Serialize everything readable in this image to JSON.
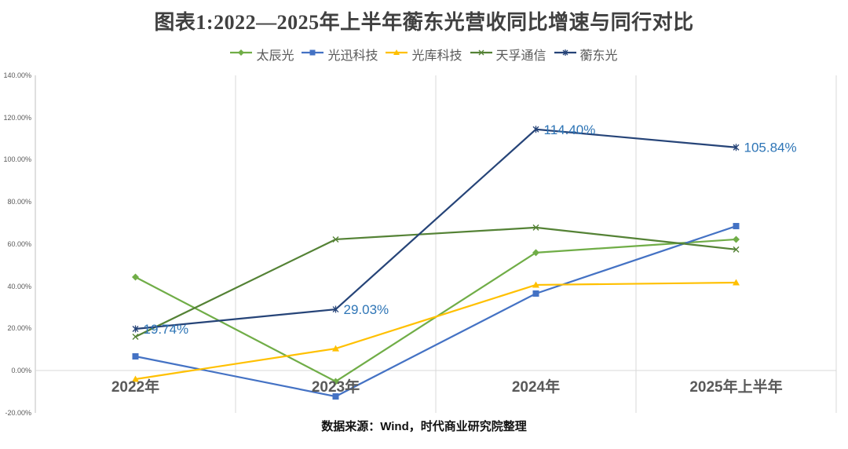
{
  "title": "图表1:2022—2025年上半年蘅东光营收同比增速与同行对比",
  "source_note": "数据来源：Wind，时代商业研究院整理",
  "colors": {
    "title_text": "#404040",
    "axis_text": "#595959",
    "grid": "#d9d9d9",
    "axis_line": "#bfbfbf",
    "data_label": "#2e75b6"
  },
  "chart_data": {
    "type": "line",
    "title": "图表1:2022—2025年上半年蘅东光营收同比增速与同行对比",
    "categories": [
      "2022年",
      "2023年",
      "2024年",
      "2025年上半年"
    ],
    "series": [
      {
        "name": "太辰光",
        "color": "#70ad47",
        "marker": "diamond",
        "values": [
          44.3,
          -5.2,
          55.9,
          62.2
        ]
      },
      {
        "name": "光迅科技",
        "color": "#4472c4",
        "marker": "square",
        "values": [
          6.7,
          -12.3,
          36.5,
          68.5
        ]
      },
      {
        "name": "光库科技",
        "color": "#ffc000",
        "marker": "triangle",
        "values": [
          -4.1,
          10.4,
          40.6,
          41.7
        ]
      },
      {
        "name": "天孚通信",
        "color": "#548235",
        "marker": "x",
        "values": [
          16.0,
          62.2,
          67.8,
          57.4
        ]
      },
      {
        "name": "蘅东光",
        "color": "#264478",
        "marker": "asterisk",
        "values": [
          19.74,
          29.03,
          114.4,
          105.84
        ],
        "data_labels": [
          "19.74%",
          "29.03%",
          "114.40%",
          "105.84%"
        ]
      }
    ],
    "ylabel": "",
    "xlabel": "",
    "ylim": [
      -20,
      140
    ],
    "y_tick_step": 20,
    "y_tick_labels": [
      "140.00%",
      "120.00%",
      "100.00%",
      "80.00%",
      "60.00%",
      "40.00%",
      "20.00%",
      "0.00%",
      "-20.00%"
    ],
    "grid": "vertical-only",
    "legend_position": "top"
  }
}
